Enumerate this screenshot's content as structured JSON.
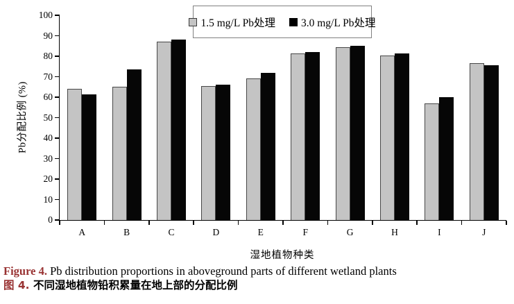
{
  "chart_data": {
    "type": "bar",
    "categories": [
      "A",
      "B",
      "C",
      "D",
      "E",
      "F",
      "G",
      "H",
      "I",
      "J"
    ],
    "series": [
      {
        "name": "1.5 mg/L Pb处理",
        "color": "#c4c4c4",
        "values": [
          64,
          65,
          87,
          65.5,
          69,
          81.5,
          84.5,
          80.5,
          57,
          76.5
        ]
      },
      {
        "name": "3.0 mg/L Pb处理",
        "color": "#000000",
        "values": [
          61.5,
          73.5,
          88,
          66,
          72,
          82,
          85,
          81.5,
          60,
          75.5
        ]
      }
    ],
    "title": "",
    "xlabel": "湿地植物种类",
    "ylabel": "Pb分配比例 (%)",
    "ylim": [
      0,
      100
    ],
    "yticks": [
      0,
      10,
      20,
      30,
      40,
      50,
      60,
      70,
      80,
      90,
      100
    ],
    "grid": false,
    "legend_position": "top-center-boxed"
  },
  "caption": {
    "figure_label_en": "Figure 4.",
    "figure_text_en": " Pb distribution proportions in aboveground parts of different wetland plants",
    "figure_label_zh": "图 4.",
    "figure_text_zh": " 不同湿地植物铅积累量在地上部的分配比例",
    "label_color": "#993333"
  }
}
